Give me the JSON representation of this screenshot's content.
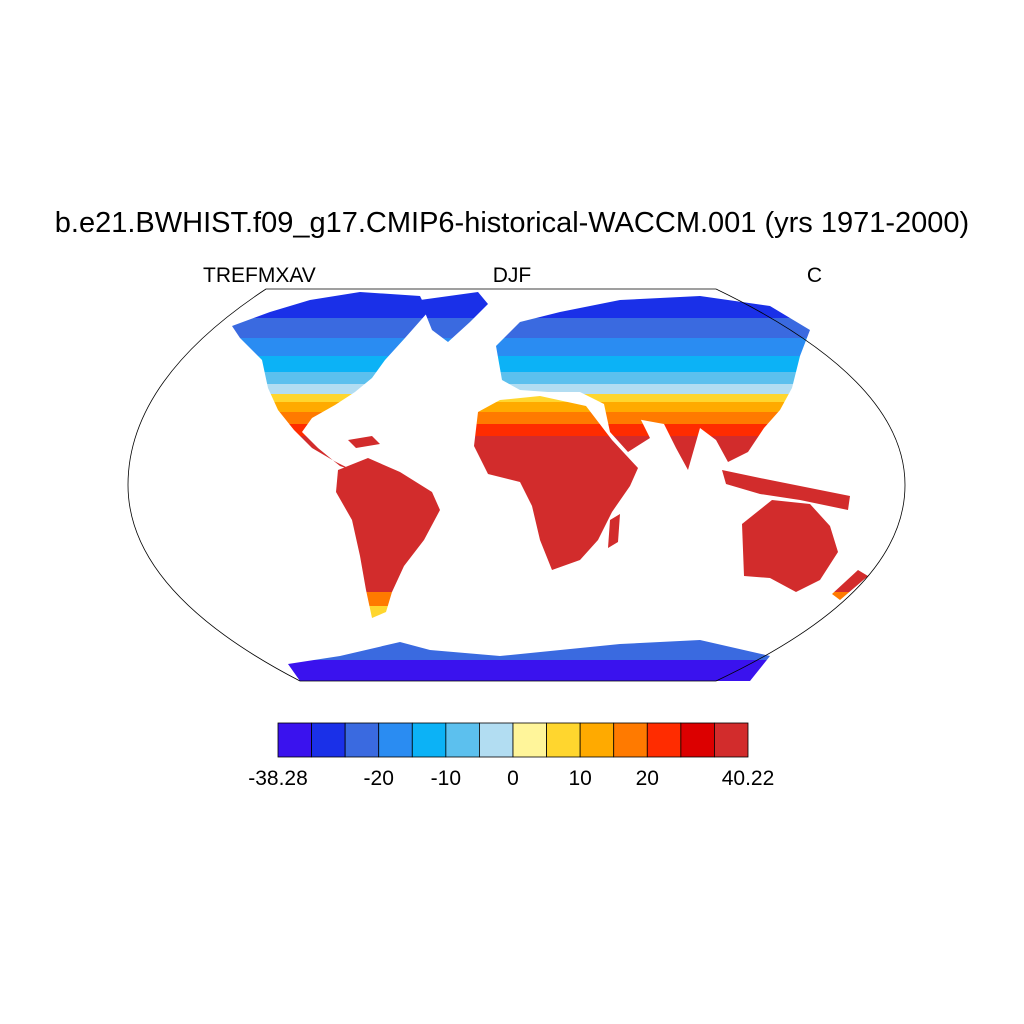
{
  "title": "b.e21.BWHIST.f09_g17.CMIP6-historical-WACCM.001 (yrs 1971-2000)",
  "variable": "TREFMXAV",
  "season": "DJF",
  "units": "C",
  "colorbar": {
    "colors": [
      "#3a12ee",
      "#1a30e8",
      "#3a6ae0",
      "#2a8cf2",
      "#0cb2f6",
      "#5cc0ee",
      "#b2ddf2",
      "#fff59a",
      "#ffd62e",
      "#ffaa00",
      "#ff7a00",
      "#ff2c00",
      "#dc0000",
      "#d22c2c"
    ],
    "levels": [
      -38.28,
      null,
      null,
      -20,
      null,
      -10,
      null,
      0,
      null,
      10,
      null,
      20,
      null,
      null,
      40.22
    ]
  }
}
